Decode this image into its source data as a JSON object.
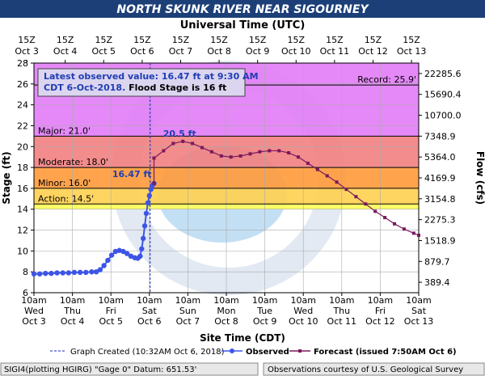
{
  "header": {
    "title": "NORTH SKUNK RIVER NEAR SIGOURNEY"
  },
  "colors": {
    "title_bar_bg": "#1c3f78",
    "record_zone": "#e27cf7",
    "major_zone": "#f28080",
    "moderate_zone": "#ff9a3a",
    "minor_zone": "#ffd050",
    "action_zone": "#ffff55",
    "observed": "#3d55e6",
    "forecast": "#7a1a5c",
    "annotation": "#1f3eb3",
    "status_bg": "#e8e8e8"
  },
  "chart_data": {
    "type": "line",
    "top_axis_title": "Universal Time (UTC)",
    "top_ticks": [
      {
        "t": -0.1875,
        "l1": "15Z",
        "l2": "Oct 3"
      },
      {
        "t": 0.8125,
        "l1": "15Z",
        "l2": "Oct 4"
      },
      {
        "t": 1.8125,
        "l1": "15Z",
        "l2": "Oct 5"
      },
      {
        "t": 2.8125,
        "l1": "15Z",
        "l2": "Oct 6"
      },
      {
        "t": 3.8125,
        "l1": "15Z",
        "l2": "Oct 7"
      },
      {
        "t": 4.8125,
        "l1": "15Z",
        "l2": "Oct 8"
      },
      {
        "t": 5.8125,
        "l1": "15Z",
        "l2": "Oct 9"
      },
      {
        "t": 6.8125,
        "l1": "15Z",
        "l2": "Oct 10"
      },
      {
        "t": 7.8125,
        "l1": "15Z",
        "l2": "Oct 11"
      },
      {
        "t": 8.8125,
        "l1": "15Z",
        "l2": "Oct 12"
      },
      {
        "t": 9.8125,
        "l1": "15Z",
        "l2": "Oct 13"
      }
    ],
    "bottom_axis_title": "Site Time (CDT)",
    "bottom_ticks": [
      {
        "t": 0,
        "l1": "10am",
        "l2": "Wed",
        "l3": "Oct 3"
      },
      {
        "t": 1,
        "l1": "10am",
        "l2": "Thu",
        "l3": "Oct 4"
      },
      {
        "t": 2,
        "l1": "10am",
        "l2": "Fri",
        "l3": "Oct 5"
      },
      {
        "t": 3,
        "l1": "10am",
        "l2": "Sat",
        "l3": "Oct 6"
      },
      {
        "t": 4,
        "l1": "10am",
        "l2": "Sun",
        "l3": "Oct 7"
      },
      {
        "t": 5,
        "l1": "10am",
        "l2": "Mon",
        "l3": "Oct 8"
      },
      {
        "t": 6,
        "l1": "10am",
        "l2": "Tue",
        "l3": "Oct 9"
      },
      {
        "t": 7,
        "l1": "10am",
        "l2": "Wed",
        "l3": "Oct 10"
      },
      {
        "t": 8,
        "l1": "10am",
        "l2": "Thu",
        "l3": "Oct 11"
      },
      {
        "t": 9,
        "l1": "10am",
        "l2": "Fri",
        "l3": "Oct 12"
      },
      {
        "t": 10,
        "l1": "10am",
        "l2": "Sat",
        "l3": "Oct 13"
      }
    ],
    "x_range": [
      0,
      10
    ],
    "y_label": "Stage (ft)",
    "ylim": [
      6,
      28
    ],
    "y_ticks": [
      "6",
      "8",
      "10",
      "12",
      "14",
      "16",
      "18",
      "20",
      "22",
      "24",
      "26",
      "28"
    ],
    "y2_label": "Flow (cfs)",
    "y2_ticks": [
      {
        "stage": 7,
        "label": "389.4"
      },
      {
        "stage": 9,
        "label": "879.7"
      },
      {
        "stage": 11,
        "label": "1518.9"
      },
      {
        "stage": 13,
        "label": "2275.3"
      },
      {
        "stage": 15,
        "label": "3154.8"
      },
      {
        "stage": 17,
        "label": "4169.9"
      },
      {
        "stage": 19,
        "label": "5364.0"
      },
      {
        "stage": 21,
        "label": "7348.9"
      },
      {
        "stage": 23,
        "label": "10700.0"
      },
      {
        "stage": 25,
        "label": "15690.4"
      },
      {
        "stage": 27,
        "label": "22285.6"
      }
    ],
    "grid": true,
    "flood_levels": [
      {
        "name": "record",
        "label": "Record: 25.9'",
        "stage": 25.9
      },
      {
        "name": "major",
        "label": "Major: 21.0'",
        "stage": 21.0
      },
      {
        "name": "moderate",
        "label": "Moderate: 18.0'",
        "stage": 18.0
      },
      {
        "name": "minor",
        "label": "Minor: 16.0'",
        "stage": 16.0
      },
      {
        "name": "action",
        "label": "Action: 14.5'",
        "stage": 14.5
      }
    ],
    "observed": {
      "name": "Observed",
      "points": [
        [
          0.0,
          7.8
        ],
        [
          0.15,
          7.8
        ],
        [
          0.3,
          7.85
        ],
        [
          0.45,
          7.85
        ],
        [
          0.6,
          7.9
        ],
        [
          0.75,
          7.9
        ],
        [
          0.9,
          7.9
        ],
        [
          1.05,
          7.95
        ],
        [
          1.2,
          7.95
        ],
        [
          1.35,
          7.95
        ],
        [
          1.5,
          8.0
        ],
        [
          1.62,
          8.0
        ],
        [
          1.72,
          8.2
        ],
        [
          1.82,
          8.6
        ],
        [
          1.92,
          9.1
        ],
        [
          2.02,
          9.6
        ],
        [
          2.12,
          9.95
        ],
        [
          2.22,
          10.05
        ],
        [
          2.32,
          9.95
        ],
        [
          2.42,
          9.75
        ],
        [
          2.52,
          9.5
        ],
        [
          2.62,
          9.35
        ],
        [
          2.7,
          9.3
        ],
        [
          2.76,
          9.5
        ],
        [
          2.8,
          10.2
        ],
        [
          2.84,
          11.2
        ],
        [
          2.88,
          12.4
        ],
        [
          2.92,
          13.6
        ],
        [
          2.96,
          14.6
        ],
        [
          3.0,
          15.3
        ],
        [
          3.04,
          15.9
        ],
        [
          3.08,
          16.3
        ],
        [
          3.12,
          16.47
        ]
      ]
    },
    "forecast": {
      "name": "Forecast (issued 7:50AM Oct 6)",
      "points": [
        [
          3.12,
          16.47
        ],
        [
          3.12,
          18.9
        ],
        [
          3.37,
          19.6
        ],
        [
          3.62,
          20.3
        ],
        [
          3.87,
          20.5
        ],
        [
          4.12,
          20.3
        ],
        [
          4.37,
          19.9
        ],
        [
          4.62,
          19.5
        ],
        [
          4.87,
          19.1
        ],
        [
          5.12,
          19.0
        ],
        [
          5.37,
          19.1
        ],
        [
          5.62,
          19.3
        ],
        [
          5.87,
          19.5
        ],
        [
          6.12,
          19.6
        ],
        [
          6.37,
          19.6
        ],
        [
          6.62,
          19.4
        ],
        [
          6.87,
          19.0
        ],
        [
          7.12,
          18.4
        ],
        [
          7.37,
          17.8
        ],
        [
          7.62,
          17.2
        ],
        [
          7.87,
          16.6
        ],
        [
          8.12,
          15.9
        ],
        [
          8.37,
          15.2
        ],
        [
          8.62,
          14.5
        ],
        [
          8.87,
          13.8
        ],
        [
          9.12,
          13.2
        ],
        [
          9.37,
          12.6
        ],
        [
          9.62,
          12.1
        ],
        [
          9.87,
          11.7
        ],
        [
          10.0,
          11.5
        ]
      ]
    },
    "annotations": {
      "peak_label": "20.5 ft",
      "peak_point": [
        3.87,
        20.5
      ],
      "obs_label": "16.47 ft",
      "obs_point": [
        3.12,
        16.47
      ]
    },
    "info_box": {
      "line1": "Latest observed value: 16.47 ft at 9:30 AM",
      "line2a": "CDT 6-Oct-2018.",
      "line2b": " Flood Stage is 16 ft"
    },
    "graph_created_t": 3.02,
    "legend": {
      "created": "Graph Created (10:32AM Oct 6, 2018)",
      "observed": "Observed",
      "forecast": "Forecast (issued 7:50AM Oct 6)"
    }
  },
  "footer": {
    "left": "SIGI4(plotting HGIRG) \"Gage 0\" Datum: 651.53'",
    "right": "Observations courtesy of U.S. Geological Survey"
  }
}
